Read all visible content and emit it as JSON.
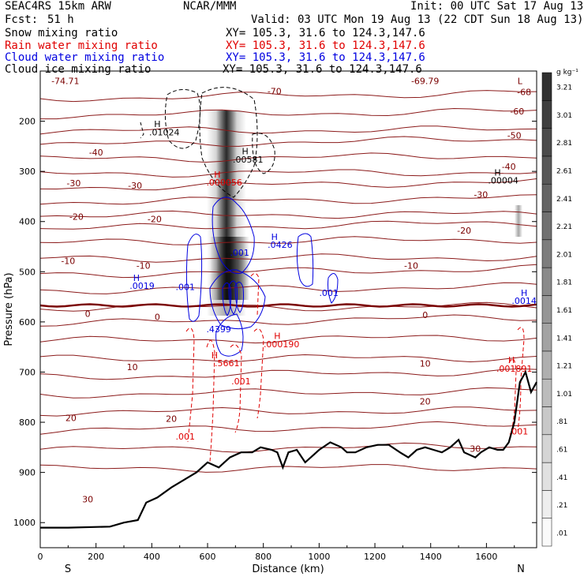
{
  "header": {
    "model": "SEAC4RS 15km ARW",
    "org": "NCAR/MMM",
    "init": "Init: 00 UTC Sat 17 Aug 13",
    "fcst_label": "Fcst:",
    "fcst_value": "51 h",
    "valid": "Valid: 03 UTC Mon 19 Aug 13 (22 CDT Sun 18 Aug 13)"
  },
  "legend": [
    {
      "name": "Snow mixing ratio",
      "color": "#000000",
      "xy": "XY= 105.3, 31.6 to 124.3,147.6"
    },
    {
      "name": "Rain water mixing ratio",
      "color": "#e00000",
      "xy": "XY= 105.3, 31.6 to 124.3,147.6"
    },
    {
      "name": "Cloud water mixing ratio",
      "color": "#0000e0",
      "xy": "XY= 105.3, 31.6 to 124.3,147.6"
    },
    {
      "name": "Cloud ice mixing ratio",
      "color": "#000000",
      "xy": "XY= 105.3, 31.6 to 124.3,147.6"
    }
  ],
  "chart_data": {
    "type": "heatmap",
    "xlabel": "Distance (km)",
    "ylabel": "Pressure (hPa)",
    "xlim": [
      0,
      1780
    ],
    "ylim": [
      1050,
      100
    ],
    "x_ticks": [
      0,
      200,
      400,
      600,
      800,
      1000,
      1200,
      1400,
      1600
    ],
    "y_ticks": [
      200,
      300,
      400,
      500,
      600,
      700,
      800,
      900,
      1000
    ],
    "x_end_labels": {
      "left": "S",
      "right": "N"
    },
    "colorbar": {
      "unit": "g kg⁻¹",
      "levels": [
        ".01",
        ".21",
        ".41",
        ".61",
        ".81",
        "1.01",
        "1.21",
        "1.41",
        "1.61",
        "1.81",
        "2.01",
        "2.21",
        "2.41",
        "2.61",
        "2.81",
        "3.01",
        "3.21"
      ]
    },
    "temperature_labels": [
      {
        "text": "-74.71",
        "x": 90,
        "p": 120,
        "color": "#7a0000"
      },
      {
        "text": "-70",
        "x": 840,
        "p": 140,
        "color": "#7a0000"
      },
      {
        "text": "-69.79",
        "x": 1380,
        "p": 120,
        "color": "#7a0000"
      },
      {
        "text": "L",
        "x": 1720,
        "p": 120,
        "color": "#7a0000"
      },
      {
        "text": "-68",
        "x": 1735,
        "p": 142,
        "color": "#7a0000"
      },
      {
        "text": "-60",
        "x": 1710,
        "p": 180,
        "color": "#7a0000"
      },
      {
        "text": "-50",
        "x": 1700,
        "p": 228,
        "color": "#7a0000"
      },
      {
        "text": "-40",
        "x": 1680,
        "p": 290,
        "color": "#7a0000"
      },
      {
        "text": "-40",
        "x": 200,
        "p": 262,
        "color": "#7a0000"
      },
      {
        "text": "-30",
        "x": 120,
        "p": 323,
        "color": "#7a0000"
      },
      {
        "text": "-30",
        "x": 340,
        "p": 328,
        "color": "#7a0000"
      },
      {
        "text": "-30",
        "x": 1580,
        "p": 346,
        "color": "#7a0000"
      },
      {
        "text": "-20",
        "x": 130,
        "p": 390,
        "color": "#7a0000"
      },
      {
        "text": "-20",
        "x": 410,
        "p": 395,
        "color": "#7a0000"
      },
      {
        "text": "-20",
        "x": 1520,
        "p": 418,
        "color": "#7a0000"
      },
      {
        "text": "-10",
        "x": 100,
        "p": 478,
        "color": "#7a0000"
      },
      {
        "text": "-10",
        "x": 370,
        "p": 488,
        "color": "#7a0000"
      },
      {
        "text": "-10",
        "x": 1330,
        "p": 488,
        "color": "#7a0000"
      },
      {
        "text": "0",
        "x": 170,
        "p": 584,
        "color": "#7a0000"
      },
      {
        "text": "0",
        "x": 420,
        "p": 590,
        "color": "#7a0000"
      },
      {
        "text": "0",
        "x": 1380,
        "p": 586,
        "color": "#7a0000"
      },
      {
        "text": "10",
        "x": 330,
        "p": 690,
        "color": "#7a0000"
      },
      {
        "text": "10",
        "x": 1380,
        "p": 683,
        "color": "#7a0000"
      },
      {
        "text": "20",
        "x": 110,
        "p": 791,
        "color": "#7a0000"
      },
      {
        "text": "20",
        "x": 470,
        "p": 793,
        "color": "#7a0000"
      },
      {
        "text": "20",
        "x": 1380,
        "p": 758,
        "color": "#7a0000"
      },
      {
        "text": "30",
        "x": 170,
        "p": 953,
        "color": "#7a0000"
      },
      {
        "text": "30",
        "x": 1560,
        "p": 853,
        "color": "#7a0000"
      }
    ],
    "extrema_labels": [
      {
        "text": "H",
        "x": 420,
        "p": 205,
        "color": "#000000"
      },
      {
        "text": ".01024",
        "x": 445,
        "p": 222,
        "color": "#000000"
      },
      {
        "text": "H",
        "x": 735,
        "p": 260,
        "color": "#000000"
      },
      {
        "text": ".00581",
        "x": 745,
        "p": 276,
        "color": "#000000"
      },
      {
        "text": "H",
        "x": 1640,
        "p": 302,
        "color": "#000000"
      },
      {
        "text": ".00004",
        "x": 1660,
        "p": 318,
        "color": "#000000"
      },
      {
        "text": "H",
        "x": 635,
        "p": 306,
        "color": "#e00000"
      },
      {
        "text": ".000056",
        "x": 660,
        "p": 322,
        "color": "#e00000"
      },
      {
        "text": ".001",
        "x": 715,
        "p": 462,
        "color": "#0000e0"
      },
      {
        "text": "H",
        "x": 840,
        "p": 430,
        "color": "#0000e0"
      },
      {
        "text": ".0426",
        "x": 860,
        "p": 446,
        "color": "#0000e0"
      },
      {
        "text": ".001",
        "x": 520,
        "p": 530,
        "color": "#0000e0"
      },
      {
        "text": "H",
        "x": 345,
        "p": 512,
        "color": "#0000e0"
      },
      {
        "text": ".0019",
        "x": 365,
        "p": 528,
        "color": "#0000e0"
      },
      {
        "text": ".001",
        "x": 1035,
        "p": 542,
        "color": "#0000e0"
      },
      {
        "text": "H",
        "x": 1735,
        "p": 542,
        "color": "#0000e0"
      },
      {
        "text": ".0014",
        "x": 1735,
        "p": 558,
        "color": "#0000e0"
      },
      {
        "text": ".4399",
        "x": 640,
        "p": 614,
        "color": "#0000e0"
      },
      {
        "text": "H",
        "x": 850,
        "p": 628,
        "color": "#e00000"
      },
      {
        "text": ".000190",
        "x": 865,
        "p": 644,
        "color": "#e00000"
      },
      {
        "text": "H",
        "x": 625,
        "p": 666,
        "color": "#e00000"
      },
      {
        "text": ".5661",
        "x": 670,
        "p": 682,
        "color": "#e00000"
      },
      {
        "text": ".001",
        "x": 720,
        "p": 718,
        "color": "#e00000"
      },
      {
        "text": "H",
        "x": 1690,
        "p": 676,
        "color": "#e00000"
      },
      {
        "text": ".001891",
        "x": 1700,
        "p": 693,
        "color": "#e00000"
      },
      {
        "text": ".001",
        "x": 520,
        "p": 828,
        "color": "#e00000"
      },
      {
        "text": ".001",
        "x": 1715,
        "p": 818,
        "color": "#e00000"
      }
    ],
    "terrain": [
      [
        0,
        1010
      ],
      [
        100,
        1010
      ],
      [
        250,
        1008
      ],
      [
        300,
        1000
      ],
      [
        350,
        995
      ],
      [
        380,
        960
      ],
      [
        420,
        950
      ],
      [
        470,
        930
      ],
      [
        500,
        920
      ],
      [
        560,
        900
      ],
      [
        600,
        880
      ],
      [
        640,
        890
      ],
      [
        680,
        870
      ],
      [
        720,
        860
      ],
      [
        760,
        860
      ],
      [
        790,
        850
      ],
      [
        830,
        855
      ],
      [
        850,
        860
      ],
      [
        870,
        890
      ],
      [
        890,
        860
      ],
      [
        920,
        855
      ],
      [
        950,
        880
      ],
      [
        970,
        870
      ],
      [
        1000,
        855
      ],
      [
        1040,
        840
      ],
      [
        1080,
        850
      ],
      [
        1100,
        860
      ],
      [
        1130,
        860
      ],
      [
        1170,
        850
      ],
      [
        1210,
        845
      ],
      [
        1250,
        845
      ],
      [
        1290,
        860
      ],
      [
        1320,
        870
      ],
      [
        1350,
        855
      ],
      [
        1380,
        850
      ],
      [
        1410,
        855
      ],
      [
        1440,
        860
      ],
      [
        1470,
        850
      ],
      [
        1500,
        835
      ],
      [
        1520,
        860
      ],
      [
        1560,
        870
      ],
      [
        1580,
        860
      ],
      [
        1610,
        850
      ],
      [
        1640,
        855
      ],
      [
        1660,
        855
      ],
      [
        1680,
        840
      ],
      [
        1700,
        800
      ],
      [
        1720,
        720
      ],
      [
        1740,
        700
      ],
      [
        1760,
        740
      ],
      [
        1780,
        720
      ]
    ],
    "grid": false
  }
}
